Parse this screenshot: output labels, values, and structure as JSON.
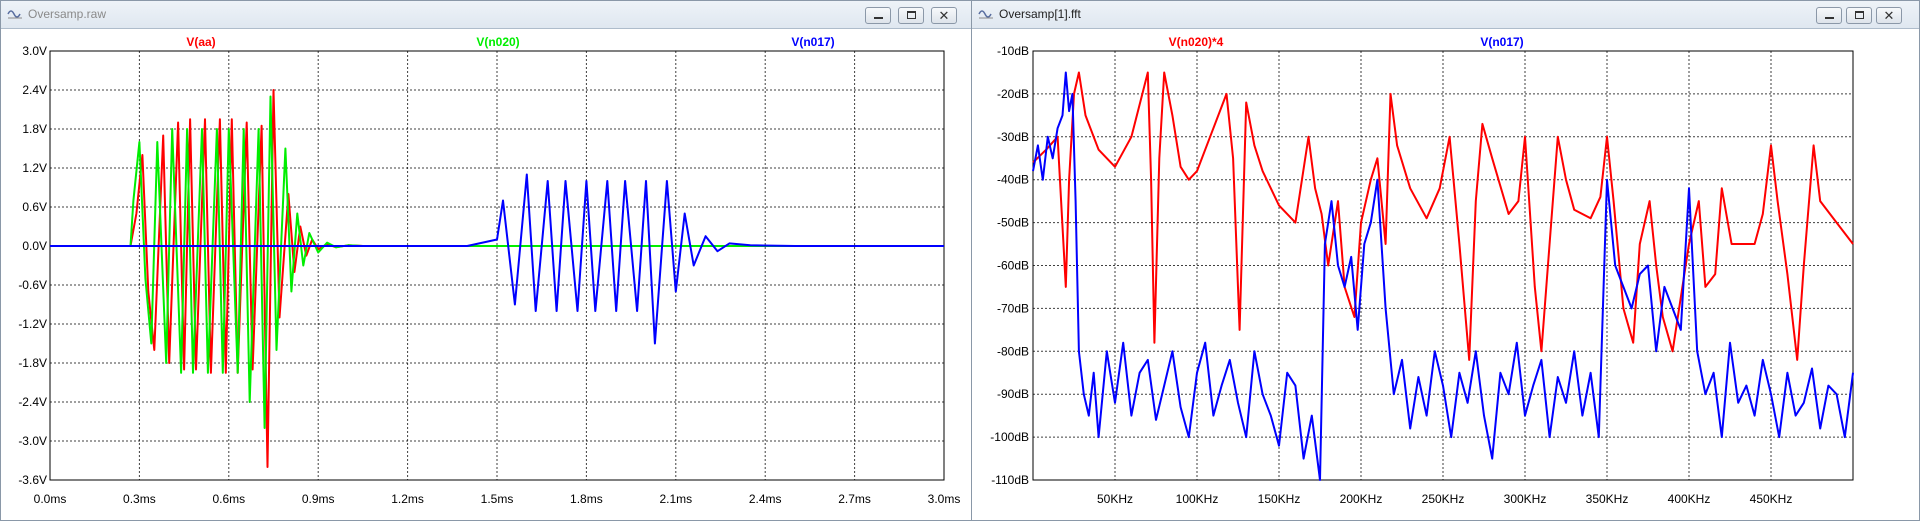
{
  "windows": {
    "left": {
      "title": "Oversamp.raw"
    },
    "right": {
      "title": "Oversamp[1].fft"
    }
  },
  "controls": {
    "close_glyph": "✕"
  },
  "chart_data": [
    {
      "type": "line",
      "xlim": [
        0,
        3.0
      ],
      "ylim": [
        -3.6,
        3.0
      ],
      "x_ticks": [
        0,
        0.3,
        0.6,
        0.9,
        1.2,
        1.5,
        1.8,
        2.1,
        2.4,
        2.7,
        3.0
      ],
      "x_tick_labels": [
        "0.0ms",
        "0.3ms",
        "0.6ms",
        "0.9ms",
        "1.2ms",
        "1.5ms",
        "1.8ms",
        "2.1ms",
        "2.4ms",
        "2.7ms",
        "3.0ms"
      ],
      "y_ticks": [
        3.0,
        2.4,
        1.8,
        1.2,
        0.6,
        0.0,
        -0.6,
        -1.2,
        -1.8,
        -2.4,
        -3.0,
        -3.6
      ],
      "y_tick_labels": [
        "3.0V",
        "2.4V",
        "1.8V",
        "1.2V",
        "0.6V",
        "0.0V",
        "-0.6V",
        "-1.2V",
        "-1.8V",
        "-2.4V",
        "-3.0V",
        "-3.6V"
      ],
      "grid": true,
      "series": [
        {
          "name": "V(aa)",
          "color": "#ff0000",
          "x": [
            0,
            0.27,
            0.29,
            0.31,
            0.33,
            0.35,
            0.38,
            0.4,
            0.43,
            0.45,
            0.47,
            0.49,
            0.52,
            0.54,
            0.57,
            0.59,
            0.61,
            0.63,
            0.66,
            0.68,
            0.71,
            0.73,
            0.75,
            0.77,
            0.8,
            0.82,
            0.84,
            0.86,
            0.88,
            0.9,
            0.93,
            0.96,
            1.0,
            1.05,
            1.2,
            3.0
          ],
          "values": [
            0,
            0,
            0.5,
            1.4,
            -0.7,
            -1.6,
            1.7,
            -1.8,
            1.9,
            -1.9,
            1.95,
            -1.9,
            1.95,
            -1.95,
            1.95,
            -1.95,
            1.95,
            -1.95,
            1.9,
            -1.9,
            1.85,
            -3.4,
            2.4,
            -1.1,
            0.8,
            -0.4,
            0.3,
            -0.15,
            0.1,
            -0.05,
            0.03,
            -0.02,
            0.01,
            0,
            0,
            0
          ]
        },
        {
          "name": "V(n020)",
          "color": "#00ee00",
          "x": [
            0,
            0.27,
            0.28,
            0.3,
            0.32,
            0.34,
            0.36,
            0.39,
            0.41,
            0.44,
            0.46,
            0.48,
            0.51,
            0.53,
            0.56,
            0.58,
            0.6,
            0.63,
            0.65,
            0.67,
            0.7,
            0.72,
            0.74,
            0.76,
            0.79,
            0.81,
            0.83,
            0.85,
            0.87,
            0.9,
            0.93,
            0.96,
            1.0,
            1.05,
            1.2,
            3.0
          ],
          "values": [
            0,
            0,
            0.7,
            1.6,
            -0.5,
            -1.5,
            1.6,
            -1.8,
            1.8,
            -1.95,
            1.8,
            -1.95,
            1.8,
            -1.95,
            1.8,
            -1.95,
            1.8,
            -1.95,
            1.8,
            -2.4,
            1.8,
            -2.8,
            2.3,
            -1.6,
            1.5,
            -0.7,
            0.5,
            -0.3,
            0.2,
            -0.1,
            0.05,
            -0.02,
            0.01,
            0,
            0,
            0
          ]
        },
        {
          "name": "V(n017)",
          "color": "#0000ff",
          "x": [
            0,
            1.4,
            1.5,
            1.52,
            1.56,
            1.6,
            1.63,
            1.67,
            1.7,
            1.73,
            1.77,
            1.8,
            1.83,
            1.87,
            1.9,
            1.93,
            1.97,
            2.0,
            2.03,
            2.07,
            2.1,
            2.13,
            2.16,
            2.2,
            2.24,
            2.28,
            2.35,
            2.5,
            3.0
          ],
          "values": [
            0,
            0,
            0.1,
            0.7,
            -0.9,
            1.1,
            -1.0,
            1.0,
            -1.0,
            1.0,
            -1.0,
            1.0,
            -1.0,
            1.0,
            -1.0,
            1.0,
            -1.0,
            1.0,
            -1.5,
            1.0,
            -0.7,
            0.5,
            -0.3,
            0.15,
            -0.08,
            0.04,
            0.01,
            0,
            0
          ]
        }
      ]
    },
    {
      "type": "line",
      "xlim": [
        0,
        500
      ],
      "ylim": [
        -110,
        -10
      ],
      "x_ticks": [
        50,
        100,
        150,
        200,
        250,
        300,
        350,
        400,
        450
      ],
      "x_tick_labels": [
        "50KHz",
        "100KHz",
        "150KHz",
        "200KHz",
        "250KHz",
        "300KHz",
        "350KHz",
        "400KHz",
        "450KHz"
      ],
      "y_ticks": [
        -10,
        -20,
        -30,
        -40,
        -50,
        -60,
        -70,
        -80,
        -90,
        -100,
        -110
      ],
      "y_tick_labels": [
        "-10dB",
        "-20dB",
        "-30dB",
        "-40dB",
        "-50dB",
        "-60dB",
        "-70dB",
        "-80dB",
        "-90dB",
        "-100dB",
        "-110dB"
      ],
      "grid": true,
      "series": [
        {
          "name": "V(n020)*4",
          "color": "#ff0000",
          "x": [
            0,
            8,
            15,
            20,
            22,
            25,
            28,
            32,
            40,
            50,
            60,
            70,
            72,
            74,
            77,
            80,
            85,
            90,
            95,
            100,
            110,
            118,
            122,
            126,
            130,
            135,
            140,
            150,
            160,
            168,
            172,
            176,
            180,
            186,
            190,
            196,
            200,
            206,
            210,
            215,
            218,
            222,
            230,
            240,
            248,
            254,
            260,
            266,
            270,
            274,
            280,
            290,
            296,
            300,
            306,
            310,
            316,
            320,
            325,
            330,
            340,
            346,
            350,
            354,
            360,
            366,
            370,
            376,
            380,
            384,
            390,
            396,
            400,
            406,
            410,
            416,
            420,
            426,
            430,
            440,
            445,
            450,
            454,
            460,
            466,
            470,
            476,
            480,
            490,
            500
          ],
          "values": [
            -36,
            -33,
            -30,
            -65,
            -40,
            -20,
            -15,
            -25,
            -33,
            -37,
            -30,
            -15,
            -40,
            -78,
            -35,
            -15,
            -25,
            -37,
            -40,
            -38,
            -28,
            -20,
            -35,
            -75,
            -22,
            -32,
            -38,
            -46,
            -50,
            -30,
            -42,
            -48,
            -60,
            -45,
            -65,
            -72,
            -50,
            -40,
            -35,
            -55,
            -20,
            -32,
            -42,
            -49,
            -42,
            -30,
            -55,
            -82,
            -45,
            -27,
            -35,
            -48,
            -45,
            -30,
            -65,
            -80,
            -50,
            -30,
            -40,
            -47,
            -49,
            -44,
            -30,
            -45,
            -70,
            -78,
            -55,
            -45,
            -60,
            -72,
            -80,
            -65,
            -55,
            -45,
            -65,
            -62,
            -42,
            -55,
            -55,
            -55,
            -48,
            -32,
            -45,
            -62,
            -82,
            -60,
            -32,
            -45,
            -50,
            -55
          ]
        },
        {
          "name": "V(n017)",
          "color": "#0000ff",
          "x": [
            0,
            3,
            6,
            9,
            12,
            15,
            18,
            20,
            22,
            24,
            26,
            28,
            31,
            34,
            37,
            40,
            45,
            50,
            55,
            60,
            65,
            70,
            75,
            80,
            85,
            90,
            95,
            100,
            105,
            110,
            115,
            120,
            125,
            130,
            135,
            140,
            145,
            150,
            155,
            160,
            165,
            170,
            175,
            178,
            182,
            186,
            190,
            194,
            198,
            202,
            206,
            210,
            215,
            220,
            225,
            230,
            235,
            240,
            245,
            250,
            255,
            260,
            265,
            270,
            275,
            280,
            285,
            290,
            295,
            300,
            305,
            310,
            315,
            320,
            325,
            330,
            335,
            340,
            345,
            350,
            355,
            360,
            365,
            370,
            375,
            380,
            385,
            390,
            395,
            400,
            405,
            410,
            415,
            420,
            425,
            430,
            435,
            440,
            445,
            450,
            455,
            460,
            465,
            470,
            475,
            480,
            485,
            490,
            495,
            500
          ],
          "values": [
            -38,
            -32,
            -40,
            -30,
            -35,
            -28,
            -25,
            -15,
            -24,
            -20,
            -45,
            -80,
            -90,
            -95,
            -85,
            -100,
            -80,
            -92,
            -78,
            -95,
            -85,
            -82,
            -96,
            -88,
            -80,
            -93,
            -100,
            -85,
            -78,
            -95,
            -88,
            -82,
            -92,
            -100,
            -80,
            -90,
            -95,
            -102,
            -85,
            -88,
            -105,
            -95,
            -110,
            -55,
            -45,
            -60,
            -65,
            -58,
            -75,
            -55,
            -50,
            -40,
            -70,
            -90,
            -82,
            -98,
            -86,
            -95,
            -80,
            -88,
            -100,
            -85,
            -92,
            -80,
            -95,
            -105,
            -85,
            -90,
            -78,
            -95,
            -88,
            -82,
            -100,
            -86,
            -92,
            -80,
            -95,
            -85,
            -100,
            -40,
            -60,
            -65,
            -70,
            -62,
            -60,
            -80,
            -65,
            -70,
            -75,
            -42,
            -80,
            -90,
            -85,
            -100,
            -78,
            -92,
            -88,
            -95,
            -82,
            -90,
            -100,
            -85,
            -95,
            -92,
            -84,
            -98,
            -88,
            -90,
            -100,
            -85
          ]
        }
      ]
    }
  ]
}
